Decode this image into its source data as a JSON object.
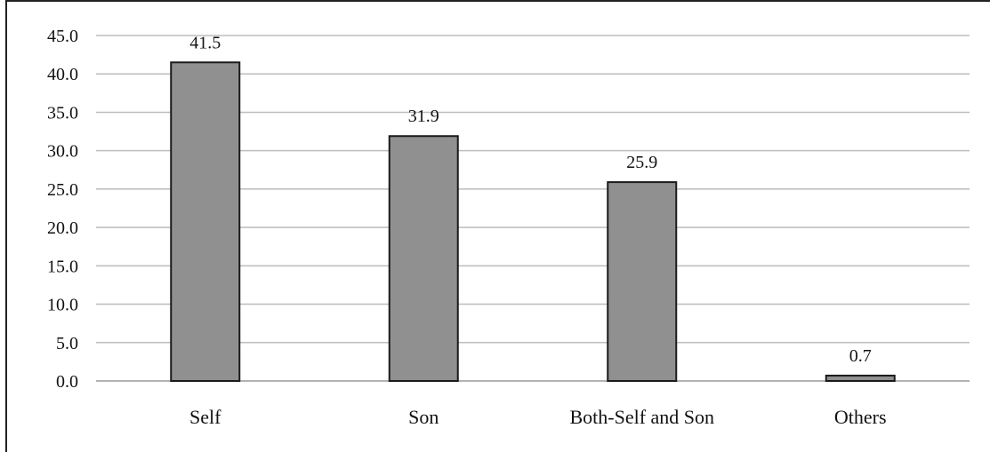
{
  "chart_data": {
    "type": "bar",
    "categories": [
      "Self",
      "Son",
      "Both-Self and Son",
      "Others"
    ],
    "values": [
      41.5,
      31.9,
      25.9,
      0.7
    ],
    "data_labels": [
      "41.5",
      "31.9",
      "25.9",
      "0.7"
    ],
    "title": "",
    "xlabel": "",
    "ylabel": "",
    "ylim": [
      0,
      45
    ],
    "yticks": [
      "0.0",
      "5.0",
      "10.0",
      "15.0",
      "20.0",
      "25.0",
      "30.0",
      "35.0",
      "40.0",
      "45.0"
    ],
    "grid": true,
    "legend": "none",
    "colors": {
      "bar_fill": "#8f908f",
      "bar_stroke": "#1a1a1a",
      "grid": "#bdbdbd"
    }
  }
}
